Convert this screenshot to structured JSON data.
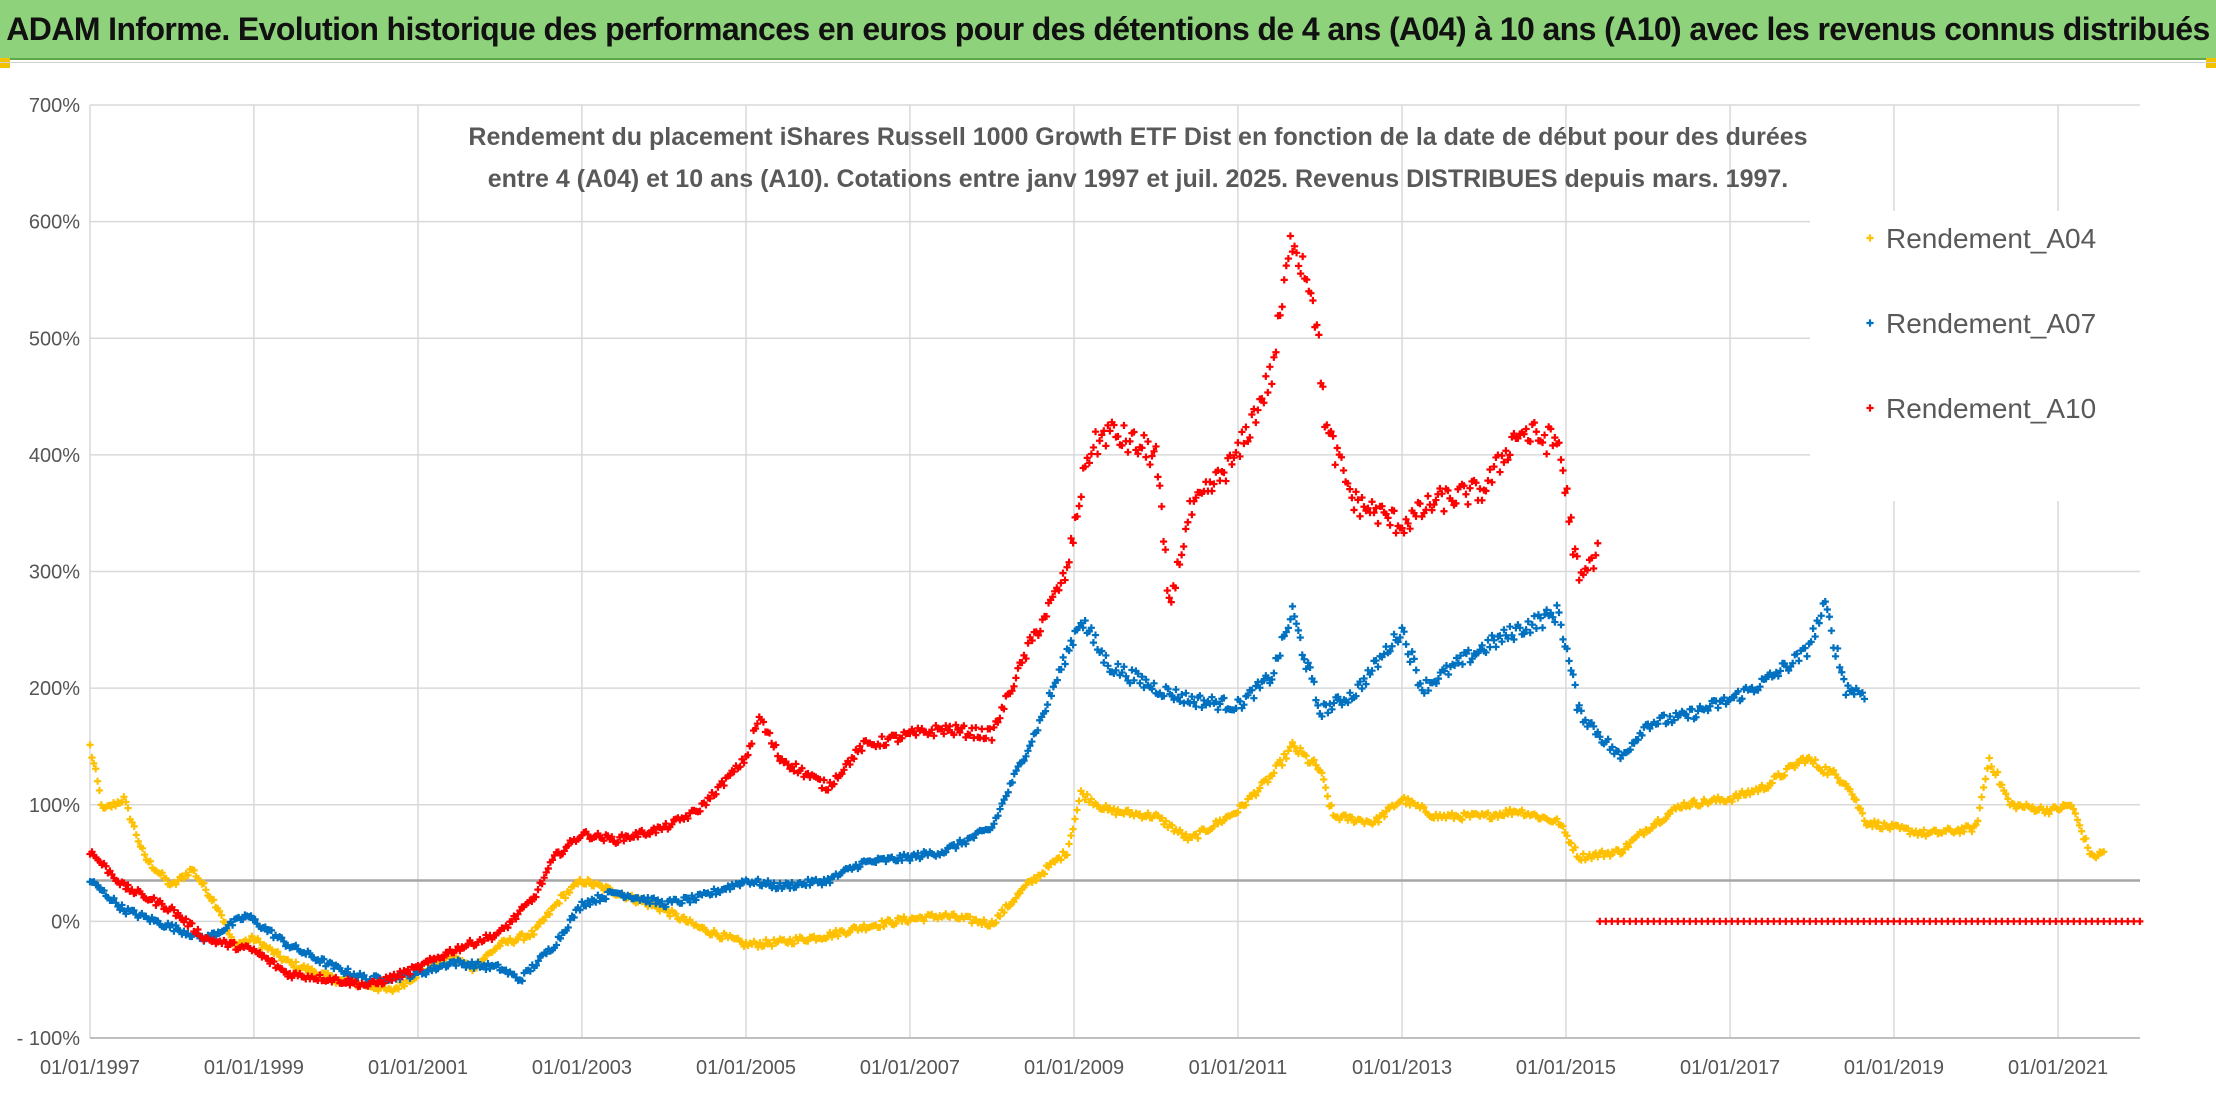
{
  "banner": {
    "title": "ADAM Informe. Evolution historique des performances en euros pour des détentions de 4 ans (A04) à 10 ans (A10) avec les revenus connus distribués"
  },
  "chart_data": {
    "type": "scatter",
    "title_lines": [
      "Rendement du placement iShares Russell 1000 Growth ETF Dist en fonction de la date de début pour des durées",
      "entre 4 (A04) et 10 ans (A10). Cotations entre janv 1997 et juil. 2025. Revenus DISTRIBUES depuis mars. 1997."
    ],
    "xlabel": "",
    "ylabel": "",
    "x_range": [
      "1997-01-01",
      "2022-01-01"
    ],
    "y_range": [
      -100,
      700
    ],
    "x_ticks": [
      "01/01/1997",
      "01/01/1999",
      "01/01/2001",
      "01/01/2003",
      "01/01/2005",
      "01/01/2007",
      "01/01/2009",
      "01/01/2011",
      "01/01/2013",
      "01/01/2015",
      "01/01/2017",
      "01/01/2019",
      "01/01/2021"
    ],
    "y_ticks": [
      "- 100%",
      "0%",
      "100%",
      "200%",
      "300%",
      "400%",
      "500%",
      "600%",
      "700%"
    ],
    "grid": true,
    "legend_position": "top-right",
    "reference_line_y": 35,
    "series": [
      {
        "name": "Rendement_A04",
        "color": "#ffc000",
        "points": [
          [
            "1997-01-01",
            150
          ],
          [
            "1997-03-01",
            95
          ],
          [
            "1997-06-01",
            105
          ],
          [
            "1997-09-01",
            55
          ],
          [
            "1998-01-01",
            30
          ],
          [
            "1998-04-01",
            45
          ],
          [
            "1998-08-01",
            10
          ],
          [
            "1998-10-01",
            -20
          ],
          [
            "1999-01-01",
            -15
          ],
          [
            "1999-06-01",
            -35
          ],
          [
            "2000-01-01",
            -50
          ],
          [
            "2000-06-01",
            -55
          ],
          [
            "2000-09-01",
            -60
          ],
          [
            "2001-01-01",
            -45
          ],
          [
            "2001-06-01",
            -30
          ],
          [
            "2001-09-01",
            -40
          ],
          [
            "2002-01-01",
            -20
          ],
          [
            "2002-06-01",
            -10
          ],
          [
            "2002-10-01",
            20
          ],
          [
            "2003-01-01",
            35
          ],
          [
            "2003-06-01",
            25
          ],
          [
            "2004-01-01",
            10
          ],
          [
            "2004-06-01",
            -5
          ],
          [
            "2005-01-01",
            -20
          ],
          [
            "2005-06-01",
            -18
          ],
          [
            "2006-01-01",
            -12
          ],
          [
            "2006-06-01",
            -5
          ],
          [
            "2007-01-01",
            2
          ],
          [
            "2007-06-01",
            5
          ],
          [
            "2008-01-01",
            -2
          ],
          [
            "2008-06-01",
            30
          ],
          [
            "2008-12-01",
            60
          ],
          [
            "2009-02-01",
            110
          ],
          [
            "2009-06-01",
            95
          ],
          [
            "2010-01-01",
            90
          ],
          [
            "2010-06-01",
            70
          ],
          [
            "2011-01-01",
            95
          ],
          [
            "2011-06-01",
            125
          ],
          [
            "2011-09-01",
            150
          ],
          [
            "2012-01-01",
            130
          ],
          [
            "2012-03-01",
            90
          ],
          [
            "2012-09-01",
            85
          ],
          [
            "2013-01-01",
            105
          ],
          [
            "2013-06-01",
            90
          ],
          [
            "2014-01-01",
            90
          ],
          [
            "2014-06-01",
            95
          ],
          [
            "2014-12-01",
            85
          ],
          [
            "2015-03-01",
            55
          ],
          [
            "2015-09-01",
            60
          ],
          [
            "2016-01-01",
            80
          ],
          [
            "2016-06-01",
            100
          ],
          [
            "2017-01-01",
            105
          ],
          [
            "2017-06-01",
            115
          ],
          [
            "2017-12-01",
            140
          ],
          [
            "2018-06-01",
            120
          ],
          [
            "2018-09-01",
            85
          ],
          [
            "2019-01-01",
            80
          ],
          [
            "2019-06-01",
            75
          ],
          [
            "2020-01-01",
            80
          ],
          [
            "2020-03-01",
            140
          ],
          [
            "2020-06-01",
            100
          ],
          [
            "2020-12-01",
            95
          ],
          [
            "2021-03-01",
            100
          ],
          [
            "2021-06-01",
            55
          ],
          [
            "2021-08-01",
            60
          ]
        ]
      },
      {
        "name": "Rendement_A07",
        "color": "#0070c0",
        "points": [
          [
            "1997-01-01",
            35
          ],
          [
            "1997-06-01",
            10
          ],
          [
            "1998-01-01",
            -5
          ],
          [
            "1998-06-01",
            -15
          ],
          [
            "1998-12-01",
            5
          ],
          [
            "1999-06-01",
            -20
          ],
          [
            "2000-01-01",
            -40
          ],
          [
            "2000-06-01",
            -50
          ],
          [
            "2001-01-01",
            -45
          ],
          [
            "2001-06-01",
            -35
          ],
          [
            "2002-01-01",
            -40
          ],
          [
            "2002-04-01",
            -50
          ],
          [
            "2002-09-01",
            -20
          ],
          [
            "2003-01-01",
            15
          ],
          [
            "2003-06-01",
            25
          ],
          [
            "2004-01-01",
            15
          ],
          [
            "2004-06-01",
            20
          ],
          [
            "2005-01-01",
            35
          ],
          [
            "2005-06-01",
            30
          ],
          [
            "2006-01-01",
            35
          ],
          [
            "2006-06-01",
            50
          ],
          [
            "2007-01-01",
            55
          ],
          [
            "2007-06-01",
            60
          ],
          [
            "2008-01-01",
            80
          ],
          [
            "2008-04-01",
            120
          ],
          [
            "2008-08-01",
            170
          ],
          [
            "2008-12-01",
            230
          ],
          [
            "2009-02-01",
            260
          ],
          [
            "2009-06-01",
            220
          ],
          [
            "2010-01-01",
            200
          ],
          [
            "2010-06-01",
            190
          ],
          [
            "2011-01-01",
            185
          ],
          [
            "2011-06-01",
            210
          ],
          [
            "2011-09-01",
            265
          ],
          [
            "2012-01-01",
            180
          ],
          [
            "2012-06-01",
            195
          ],
          [
            "2013-01-01",
            250
          ],
          [
            "2013-04-01",
            200
          ],
          [
            "2013-09-01",
            220
          ],
          [
            "2014-01-01",
            235
          ],
          [
            "2014-06-01",
            250
          ],
          [
            "2014-12-01",
            265
          ],
          [
            "2015-03-01",
            180
          ],
          [
            "2015-09-01",
            140
          ],
          [
            "2016-01-01",
            170
          ],
          [
            "2016-06-01",
            175
          ],
          [
            "2017-01-01",
            190
          ],
          [
            "2017-06-01",
            205
          ],
          [
            "2017-12-01",
            230
          ],
          [
            "2018-03-01",
            270
          ],
          [
            "2018-06-01",
            200
          ],
          [
            "2018-09-01",
            195
          ]
        ]
      },
      {
        "name": "Rendement_A10",
        "color": "#ff0000",
        "points": [
          [
            "1997-01-01",
            60
          ],
          [
            "1997-06-01",
            30
          ],
          [
            "1998-01-01",
            10
          ],
          [
            "1998-06-01",
            -15
          ],
          [
            "1999-01-01",
            -25
          ],
          [
            "1999-06-01",
            -45
          ],
          [
            "2000-01-01",
            -50
          ],
          [
            "2000-06-01",
            -55
          ],
          [
            "2001-01-01",
            -40
          ],
          [
            "2001-06-01",
            -25
          ],
          [
            "2002-01-01",
            -10
          ],
          [
            "2002-06-01",
            20
          ],
          [
            "2002-09-01",
            55
          ],
          [
            "2003-01-01",
            75
          ],
          [
            "2003-06-01",
            70
          ],
          [
            "2004-01-01",
            80
          ],
          [
            "2004-06-01",
            95
          ],
          [
            "2005-01-01",
            140
          ],
          [
            "2005-03-01",
            175
          ],
          [
            "2005-06-01",
            140
          ],
          [
            "2006-01-01",
            115
          ],
          [
            "2006-06-01",
            150
          ],
          [
            "2007-01-01",
            160
          ],
          [
            "2007-06-01",
            165
          ],
          [
            "2008-01-01",
            160
          ],
          [
            "2008-06-01",
            230
          ],
          [
            "2008-12-01",
            300
          ],
          [
            "2009-03-01",
            400
          ],
          [
            "2009-06-01",
            420
          ],
          [
            "2010-01-01",
            400
          ],
          [
            "2010-03-01",
            270
          ],
          [
            "2010-06-01",
            350
          ],
          [
            "2011-01-01",
            400
          ],
          [
            "2011-06-01",
            470
          ],
          [
            "2011-09-01",
            590
          ],
          [
            "2011-12-01",
            540
          ],
          [
            "2012-02-01",
            420
          ],
          [
            "2012-06-01",
            360
          ],
          [
            "2013-01-01",
            340
          ],
          [
            "2013-06-01",
            360
          ],
          [
            "2014-01-01",
            370
          ],
          [
            "2014-06-01",
            420
          ],
          [
            "2014-12-01",
            410
          ],
          [
            "2015-03-01",
            290
          ],
          [
            "2015-06-01",
            320
          ]
        ],
        "flat_zero_range": [
          "2015-06-01",
          "2022-01-01"
        ]
      }
    ]
  }
}
